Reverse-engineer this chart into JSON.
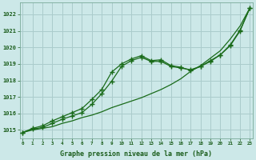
{
  "xlabel": "Graphe pression niveau de la mer (hPa)",
  "x_ticks": [
    0,
    1,
    2,
    3,
    4,
    5,
    6,
    7,
    8,
    9,
    10,
    11,
    12,
    13,
    14,
    15,
    16,
    17,
    18,
    19,
    20,
    21,
    22,
    23
  ],
  "y_ticks": [
    1015,
    1016,
    1017,
    1018,
    1019,
    1020,
    1021,
    1022
  ],
  "ylim": [
    1014.5,
    1022.7
  ],
  "xlim": [
    -0.3,
    23.3
  ],
  "background_color": "#cce8e8",
  "grid_color": "#aacccc",
  "line_color": "#1a6b1a",
  "series1_x": [
    0,
    1,
    2,
    3,
    4,
    5,
    6,
    7,
    8,
    9,
    10,
    11,
    12,
    13,
    14,
    15,
    16,
    17,
    18,
    19,
    20,
    21,
    22,
    23
  ],
  "series1_y": [
    1014.85,
    1015.0,
    1015.1,
    1015.2,
    1015.4,
    1015.55,
    1015.75,
    1015.9,
    1016.1,
    1016.35,
    1016.55,
    1016.75,
    1016.95,
    1017.2,
    1017.45,
    1017.75,
    1018.1,
    1018.55,
    1018.9,
    1019.35,
    1019.8,
    1020.5,
    1021.3,
    1022.4
  ],
  "series2_x": [
    0,
    1,
    2,
    3,
    4,
    5,
    6,
    7,
    8,
    9,
    10,
    11,
    12,
    13,
    14,
    15,
    16,
    17,
    18,
    19,
    20,
    21,
    22,
    23
  ],
  "series2_y": [
    1014.85,
    1015.05,
    1015.15,
    1015.4,
    1015.65,
    1015.85,
    1016.05,
    1016.55,
    1017.2,
    1017.95,
    1018.85,
    1019.2,
    1019.4,
    1019.15,
    1019.15,
    1018.85,
    1018.75,
    1018.65,
    1018.85,
    1019.2,
    1019.55,
    1020.15,
    1021.05,
    1022.4
  ],
  "series3_x": [
    0,
    1,
    2,
    3,
    4,
    5,
    6,
    7,
    8,
    9,
    10,
    11,
    12,
    13,
    14,
    15,
    16,
    17,
    18,
    19,
    20,
    21,
    22,
    23
  ],
  "series3_y": [
    1014.85,
    1015.1,
    1015.25,
    1015.55,
    1015.8,
    1016.05,
    1016.3,
    1016.85,
    1017.45,
    1018.5,
    1019.0,
    1019.3,
    1019.5,
    1019.2,
    1019.25,
    1018.9,
    1018.8,
    1018.6,
    1018.85,
    1019.15,
    1019.55,
    1020.1,
    1021.0,
    1022.4
  ]
}
